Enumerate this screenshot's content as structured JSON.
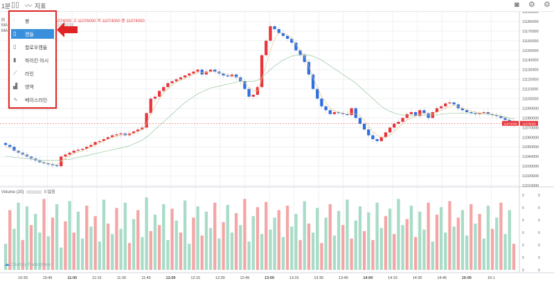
{
  "toolbar": {
    "interval_label": "1분",
    "indicator_label": "지표",
    "camera_icon": "camera-icon",
    "settings_icon": "gear-icon",
    "layout_icon": "settings-gear-icon"
  },
  "legend": {
    "ohlc_text": "1074000  고 11076000  저 11074000  종 11074000",
    "ma_lines": [
      "MA 5",
      "MA 20"
    ],
    "ma_value_fragment": "11079233"
  },
  "menu": {
    "items": [
      {
        "icon": "candle-icon",
        "label": "봉",
        "selected": false
      },
      {
        "icon": "hollow-candle-icon",
        "label": "캔들",
        "selected": true
      },
      {
        "icon": "hollow-candle-icon",
        "label": "할로우캔들",
        "selected": false
      },
      {
        "icon": "heikin-ashi-icon",
        "label": "하이킨 아시",
        "selected": false
      },
      {
        "icon": "line-icon",
        "label": "라인",
        "selected": false
      },
      {
        "icon": "area-icon",
        "label": "영역",
        "selected": false
      },
      {
        "icon": "baseline-icon",
        "label": "베이스라인",
        "selected": false
      }
    ],
    "highlight_color": "#e02424"
  },
  "volume_legend": {
    "label": "Volume (20)",
    "value": "0",
    "suffix": "없음"
  },
  "watermark": "Chart by TradingView",
  "colors": {
    "up": "#e8343a",
    "down": "#2f6fe0",
    "vol_up": "#f4a6a6",
    "vol_down": "#a8dcc7",
    "ma_short": "#e7c48a",
    "ma_long": "#97c79a",
    "price_label_bg": "#e8343a",
    "grid": "#eef0f3"
  },
  "chart_data": [
    {
      "type": "candlestick",
      "title": "",
      "ylim": [
        11010000,
        11190000
      ],
      "y_ticks": [
        11190000,
        11180000,
        11170000,
        11160000,
        11150000,
        11140000,
        11130000,
        11120000,
        11110000,
        11100000,
        11090000,
        11080000,
        11070000,
        11060000,
        11050000,
        11040000,
        11030000,
        11020000,
        11010000
      ],
      "x_ticks": [
        "10:30",
        "10:45",
        "11:00",
        "11:15",
        "11:30",
        "11:45",
        "12:00",
        "12:15",
        "12:30",
        "12:45",
        "13:00",
        "13:15",
        "13:30",
        "13:45",
        "14:00",
        "14:15",
        "14:30",
        "14:45",
        "15:00",
        "15:1"
      ],
      "last_price_labels": [
        "11074000",
        "11076000"
      ],
      "close": [
        11052000,
        11050000,
        11046000,
        11044000,
        11042000,
        11040000,
        11038000,
        11036000,
        11034000,
        11033000,
        11032000,
        11031000,
        11030000,
        11040000,
        11042000,
        11044000,
        11046000,
        11047000,
        11048000,
        11050000,
        11052000,
        11055000,
        11056000,
        11058000,
        11060000,
        11062000,
        11063000,
        11064000,
        11062000,
        11064000,
        11066000,
        11068000,
        11070000,
        11085000,
        11100000,
        11102000,
        11108000,
        11112000,
        11116000,
        11118000,
        11120000,
        11122000,
        11124000,
        11126000,
        11128000,
        11130000,
        11125000,
        11128000,
        11130000,
        11128000,
        11126000,
        11124000,
        11123000,
        11125000,
        11122000,
        11118000,
        11110000,
        11102000,
        11104000,
        11112000,
        11145000,
        11160000,
        11175000,
        11172000,
        11168000,
        11165000,
        11162000,
        11158000,
        11150000,
        11145000,
        11138000,
        11125000,
        11110000,
        11100000,
        11092000,
        11088000,
        11084000,
        11086000,
        11085000,
        11084000,
        11083000,
        11090000,
        11080000,
        11074000,
        11068000,
        11062000,
        11058000,
        11056000,
        11060000,
        11065000,
        11070000,
        11074000,
        11076000,
        11080000,
        11084000,
        11086000,
        11082000,
        11088000,
        11085000,
        11080000,
        11086000,
        11090000,
        11092000,
        11095000,
        11096000,
        11094000,
        11090000,
        11088000,
        11086000,
        11085000,
        11084000,
        11085000,
        11086000,
        11084000,
        11083000,
        11082000,
        11080000,
        11078000,
        11076000,
        11074000
      ],
      "ma_short": [
        11050000,
        11049000,
        11047000,
        11045000,
        11043000,
        11041000,
        11039000,
        11037000,
        11035000,
        11034000,
        11033000,
        11032000,
        11032000,
        11035000,
        11038000,
        11041000,
        11043000,
        11045000,
        11046000,
        11048000,
        11050000,
        11052000,
        11054000,
        11056000,
        11058000,
        11060000,
        11061000,
        11062000,
        11063000,
        11063000,
        11064000,
        11066000,
        11068000,
        11074000,
        11084000,
        11092000,
        11100000,
        11106000,
        11110000,
        11114000,
        11117000,
        11119000,
        11121000,
        11123000,
        11125000,
        11127000,
        11127000,
        11127000,
        11128000,
        11128000,
        11127000,
        11126000,
        11125000,
        11124000,
        11123000,
        11120000,
        11116000,
        11112000,
        11108000,
        11108000,
        11120000,
        11135000,
        11150000,
        11162000,
        11168000,
        11168000,
        11166000,
        11162000,
        11156000,
        11150000,
        11144000,
        11134000,
        11122000,
        11112000,
        11102000,
        11096000,
        11090000,
        11087000,
        11086000,
        11085000,
        11084000,
        11085000,
        11084000,
        11082000,
        11078000,
        11072000,
        11066000,
        11062000,
        11060000,
        11060000,
        11062000,
        11066000,
        11070000,
        11074000,
        11078000,
        11080000,
        11082000,
        11084000,
        11085000,
        11084000,
        11084000,
        11086000,
        11088000,
        11090000,
        11092000,
        11093000,
        11092000,
        11090000,
        11089000,
        11087000,
        11086000,
        11085000,
        11085000,
        11085000,
        11084000,
        11083000,
        11082000,
        11080000,
        11078000,
        11076000
      ],
      "ma_long": [
        11040000,
        11040000,
        11039000,
        11039000,
        11038000,
        11038000,
        11037000,
        11037000,
        11036000,
        11036000,
        11036000,
        11036000,
        11036000,
        11036000,
        11037000,
        11037000,
        11038000,
        11039000,
        11040000,
        11041000,
        11042000,
        11043000,
        11044000,
        11045000,
        11046000,
        11047000,
        11048000,
        11049000,
        11050000,
        11051000,
        11053000,
        11055000,
        11057000,
        11060000,
        11064000,
        11068000,
        11072000,
        11076000,
        11080000,
        11084000,
        11088000,
        11092000,
        11096000,
        11099000,
        11102000,
        11105000,
        11107000,
        11109000,
        11111000,
        11112000,
        11113000,
        11114000,
        11115000,
        11116000,
        11117000,
        11118000,
        11118000,
        11118000,
        11118000,
        11119000,
        11122000,
        11126000,
        11130000,
        11134000,
        11137000,
        11140000,
        11142000,
        11144000,
        11145000,
        11146000,
        11146000,
        11145000,
        11144000,
        11142000,
        11140000,
        11137000,
        11134000,
        11131000,
        11128000,
        11125000,
        11122000,
        11119000,
        11116000,
        11112000,
        11108000,
        11104000,
        11100000,
        11096000,
        11092000,
        11089000,
        11087000,
        11085000,
        11084000,
        11083000,
        11083000,
        11083000,
        11083000,
        11083000,
        11083000,
        11083000,
        11083000,
        11083000,
        11084000,
        11084000,
        11085000,
        11085000,
        11085000,
        11085000,
        11085000,
        11085000,
        11084000,
        11084000,
        11084000,
        11084000,
        11083000,
        11083000,
        11082000,
        11081000,
        11080000,
        11079000
      ]
    },
    {
      "type": "bar",
      "title": "Volume (20)",
      "ylim": [
        0,
        1
      ],
      "up_down": "mixed",
      "values": [
        0.35,
        0.8,
        0.55,
        0.9,
        0.4,
        0.85,
        0.6,
        0.75,
        0.5,
        0.95,
        0.45,
        0.7,
        0.88,
        0.3,
        0.65,
        0.92,
        0.5,
        0.78,
        0.42,
        0.86,
        0.58,
        0.72,
        0.38,
        0.94,
        0.62,
        0.48,
        0.83,
        0.55,
        0.9,
        0.36,
        0.68,
        0.8,
        0.44,
        0.97,
        0.52,
        0.74,
        0.6,
        0.88,
        0.4,
        0.82,
        0.66,
        0.5,
        0.93,
        0.35,
        0.7,
        0.85,
        0.46,
        0.78,
        0.56,
        0.9,
        0.42,
        0.64,
        0.87,
        0.5,
        0.76,
        0.6,
        0.95,
        0.38,
        0.72,
        0.84,
        0.48,
        0.91,
        0.54,
        0.7,
        0.8,
        0.44,
        0.86,
        0.58,
        0.75,
        0.4,
        0.92,
        0.62,
        0.5,
        0.83,
        0.36,
        0.7,
        0.88,
        0.46,
        0.79,
        0.6,
        0.94,
        0.42,
        0.66,
        0.85,
        0.52,
        0.77,
        0.4,
        0.9,
        0.56,
        0.72,
        0.82,
        0.48,
        0.95,
        0.6,
        0.68,
        0.86,
        0.44,
        0.78,
        0.54,
        0.9,
        0.38,
        0.74,
        0.84,
        0.5,
        0.92,
        0.58,
        0.7,
        0.8,
        0.46,
        0.88,
        0.62,
        0.75,
        0.42,
        0.86,
        0.55,
        0.7,
        0.9,
        0.48,
        0.8,
        0.35
      ]
    }
  ]
}
